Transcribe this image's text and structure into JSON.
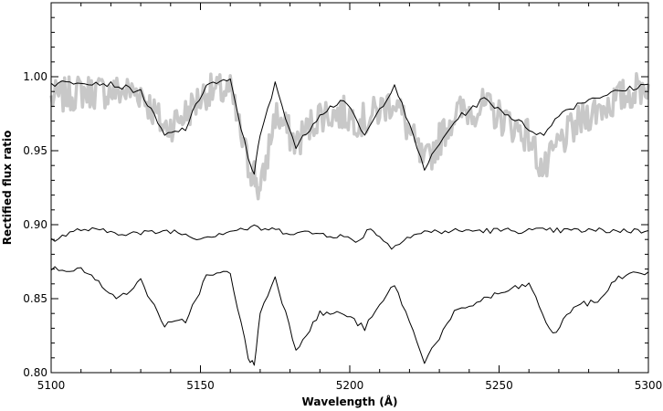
{
  "chart_data": {
    "type": "line",
    "xlabel": "Wavelength (Å)",
    "ylabel": "Rectified flux ratio",
    "xlim": [
      5100,
      5300
    ],
    "ylim": [
      0.8,
      1.05
    ],
    "x_ticks": [
      5100,
      5150,
      5200,
      5250,
      5300
    ],
    "y_ticks": [
      0.8,
      0.85,
      0.9,
      0.95,
      1.0
    ],
    "x_tick_labels": [
      "5100",
      "5150",
      "5200",
      "5250",
      "5300"
    ],
    "y_tick_labels": [
      "0.80",
      "0.85",
      "0.90",
      "0.95",
      "1.00"
    ],
    "grid": false,
    "legend": "none",
    "series": [
      {
        "style": "thick-gray",
        "color": "#c8c8c8",
        "baseline": 0.99,
        "noise": 0.012,
        "x": [
          5100,
          5110,
          5120,
          5130,
          5138,
          5145,
          5152,
          5160,
          5166,
          5168,
          5170,
          5175,
          5182,
          5190,
          5198,
          5205,
          5215,
          5225,
          5235,
          5245,
          5260,
          5265,
          5270,
          5280,
          5290,
          5300
        ],
        "y": [
          0.985,
          0.99,
          0.99,
          0.99,
          0.965,
          0.975,
          0.99,
          0.99,
          0.94,
          0.935,
          0.92,
          0.975,
          0.955,
          0.975,
          0.975,
          0.97,
          0.985,
          0.94,
          0.975,
          0.98,
          0.96,
          0.935,
          0.955,
          0.975,
          0.985,
          0.995
        ]
      },
      {
        "style": "thin-black",
        "color": "#000000",
        "x": [
          5100,
          5110,
          5120,
          5130,
          5138,
          5145,
          5152,
          5160,
          5166,
          5168,
          5170,
          5175,
          5182,
          5190,
          5198,
          5205,
          5215,
          5225,
          5235,
          5245,
          5260,
          5265,
          5270,
          5280,
          5290,
          5300
        ],
        "y": [
          0.995,
          0.997,
          0.995,
          0.99,
          0.96,
          0.965,
          0.995,
          0.997,
          0.945,
          0.935,
          0.96,
          0.995,
          0.952,
          0.975,
          0.985,
          0.96,
          0.995,
          0.938,
          0.97,
          0.985,
          0.965,
          0.96,
          0.975,
          0.985,
          0.99,
          0.995
        ]
      },
      {
        "style": "thin-black",
        "color": "#000000",
        "x": [
          5100,
          5105,
          5110,
          5120,
          5130,
          5140,
          5150,
          5160,
          5168,
          5180,
          5190,
          5198,
          5202,
          5207,
          5210,
          5214,
          5218,
          5225,
          5240,
          5260,
          5280,
          5300
        ],
        "y": [
          0.89,
          0.893,
          0.897,
          0.895,
          0.894,
          0.896,
          0.891,
          0.896,
          0.898,
          0.895,
          0.894,
          0.892,
          0.888,
          0.898,
          0.892,
          0.884,
          0.891,
          0.895,
          0.896,
          0.896,
          0.896,
          0.896
        ]
      },
      {
        "style": "thin-black",
        "color": "#000000",
        "x": [
          5100,
          5110,
          5123,
          5130,
          5138,
          5145,
          5152,
          5160,
          5166,
          5168,
          5170,
          5175,
          5182,
          5190,
          5198,
          5205,
          5215,
          5225,
          5235,
          5245,
          5260,
          5268,
          5275,
          5283,
          5290,
          5300
        ],
        "y": [
          0.87,
          0.87,
          0.85,
          0.862,
          0.832,
          0.835,
          0.865,
          0.868,
          0.81,
          0.805,
          0.84,
          0.865,
          0.816,
          0.84,
          0.84,
          0.83,
          0.86,
          0.808,
          0.84,
          0.85,
          0.86,
          0.825,
          0.845,
          0.848,
          0.865,
          0.868
        ]
      }
    ]
  }
}
